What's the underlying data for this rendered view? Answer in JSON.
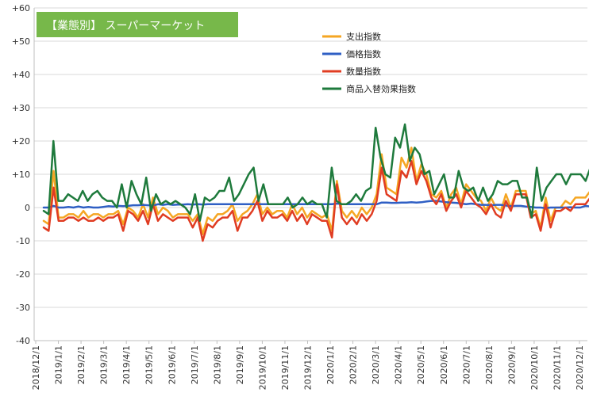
{
  "chart_data": {
    "type": "line",
    "title": "【業態別】 スーパーマーケット",
    "title_bg_color": "#77b84a",
    "ylim": [
      -40,
      60
    ],
    "y_ticks": [
      "+60",
      "+50",
      "+40",
      "+30",
      "+20",
      "+10",
      "0",
      "-10",
      "-20",
      "-30",
      "-40"
    ],
    "x_ticks": [
      "2018/12/1",
      "2019/1/1",
      "2019/2/1",
      "2019/3/1",
      "2019/4/1",
      "2019/5/1",
      "2019/6/1",
      "2019/7/1",
      "2019/8/1",
      "2019/9/1",
      "2019/10/1",
      "2019/11/1",
      "2019/12/1",
      "2020/1/1",
      "2020/2/1",
      "2020/3/1",
      "2020/4/1",
      "2020/5/1",
      "2020/6/1",
      "2020/7/1",
      "2020/8/1",
      "2020/9/1",
      "2020/10/1",
      "2020/11/1",
      "2020/12/1"
    ],
    "x_range": [
      "2018/12/1",
      "2020/12/31"
    ],
    "grid": "horizontal",
    "legend_position": "top-right",
    "series": [
      {
        "name": "支出指数",
        "color": "#f5a623",
        "values": [
          -4,
          -5,
          11,
          -3,
          -3,
          -2,
          -2,
          -3,
          -1,
          -3,
          -2,
          -2,
          -3,
          -2,
          -2,
          -1,
          -5,
          0,
          -1,
          -3,
          1,
          -3,
          3,
          -2,
          0,
          -1,
          -3,
          -2,
          -2,
          -2,
          -4,
          -2,
          -8,
          -3,
          -4,
          -2,
          -2,
          -1,
          1,
          -4,
          -2,
          -1,
          1,
          4,
          -2,
          0,
          -2,
          -1,
          -1,
          -3,
          1,
          -2,
          0,
          -3,
          -1,
          -2,
          -3,
          -2,
          -7,
          8,
          -1,
          -3,
          -1,
          -3,
          0,
          -2,
          0,
          4,
          16,
          6,
          5,
          4,
          15,
          12,
          18,
          8,
          13,
          10,
          4,
          3,
          5,
          0,
          4,
          6,
          1,
          7,
          5,
          3,
          2,
          -1,
          3,
          0,
          -1,
          4,
          0,
          5,
          5,
          5,
          -2,
          -1,
          -6,
          3,
          -4,
          0,
          0,
          2,
          1,
          3,
          3,
          3,
          5,
          1
        ]
      },
      {
        "name": "価格指数",
        "color": "#2f5fc4",
        "values": [
          0,
          0,
          0.5,
          0,
          0,
          0.2,
          0,
          0.3,
          0,
          0.2,
          0,
          0,
          0.2,
          0.4,
          0.3,
          0.5,
          0.4,
          0.5,
          0.7,
          0.7,
          0.8,
          0.7,
          0.6,
          1,
          0.8,
          1,
          0.8,
          0.9,
          0.9,
          1,
          0.9,
          1,
          0.9,
          1,
          1,
          1,
          1,
          1,
          1,
          1,
          1,
          1,
          1,
          1,
          1,
          1,
          1,
          1,
          1,
          1,
          1,
          1,
          1,
          1,
          1,
          1,
          1,
          1,
          1,
          1.2,
          1,
          1,
          1,
          1,
          1,
          1,
          1,
          1,
          1.5,
          1.5,
          1.4,
          1.4,
          1.5,
          1.5,
          1.6,
          1.5,
          1.6,
          1.8,
          2,
          2,
          1.8,
          1.6,
          1.5,
          1.4,
          1.2,
          1,
          1.2,
          1,
          0.8,
          0.8,
          0.7,
          0.8,
          0.8,
          0.6,
          0.4,
          0.5,
          0.5,
          0.3,
          0.2,
          0,
          0,
          -0.2,
          0,
          0,
          0,
          0,
          0.1,
          0,
          0,
          0.5,
          0.3,
          -0.3
        ]
      },
      {
        "name": "数量指数",
        "color": "#e03c22",
        "values": [
          -6,
          -7,
          6,
          -4,
          -4,
          -3,
          -3,
          -4,
          -3,
          -4,
          -4,
          -3,
          -4,
          -3,
          -3,
          -2,
          -7,
          -1,
          -2,
          -4,
          -1,
          -5,
          1,
          -4,
          -2,
          -3,
          -4,
          -3,
          -3,
          -3,
          -6,
          -3,
          -10,
          -5,
          -6,
          -4,
          -3,
          -3,
          -1,
          -7,
          -3,
          -3,
          -1,
          2,
          -4,
          -1,
          -3,
          -3,
          -2,
          -4,
          -1,
          -4,
          -2,
          -5,
          -2,
          -3,
          -4,
          -4,
          -9,
          7,
          -3,
          -5,
          -3,
          -5,
          -2,
          -4,
          -2,
          2,
          12,
          4,
          3,
          2,
          11,
          9,
          14,
          7,
          11,
          8,
          3,
          1,
          4,
          -1,
          2,
          4,
          0,
          5,
          3,
          1,
          0,
          -2,
          1,
          -2,
          -3,
          2,
          -1,
          4,
          4,
          4,
          -3,
          -2,
          -7,
          1,
          -6,
          -1,
          -1,
          0,
          -1,
          1,
          1,
          1,
          3,
          -1
        ]
      },
      {
        "name": "商品入替効果指数",
        "color": "#1e7a3c",
        "values": [
          -1,
          -2,
          20,
          2,
          2,
          4,
          3,
          2,
          5,
          2,
          4,
          5,
          3,
          2,
          2,
          0,
          7,
          0,
          8,
          4,
          1,
          9,
          -1,
          4,
          1,
          2,
          1,
          2,
          1,
          0,
          -2,
          4,
          -4,
          3,
          2,
          3,
          5,
          5,
          9,
          2,
          4,
          7,
          10,
          12,
          2,
          7,
          1,
          1,
          1,
          1,
          3,
          0,
          1,
          3,
          1,
          2,
          1,
          1,
          -3,
          12,
          2,
          1,
          1,
          2,
          4,
          2,
          5,
          6,
          24,
          15,
          10,
          9,
          21,
          18,
          25,
          14,
          18,
          16,
          10,
          11,
          4,
          7,
          10,
          3,
          3,
          11,
          6,
          5,
          6,
          2,
          6,
          2,
          4,
          8,
          7,
          7,
          8,
          8,
          3,
          3,
          -3,
          12,
          2,
          6,
          8,
          10,
          10,
          7,
          10,
          10,
          10,
          8,
          12,
          6
        ]
      }
    ]
  }
}
